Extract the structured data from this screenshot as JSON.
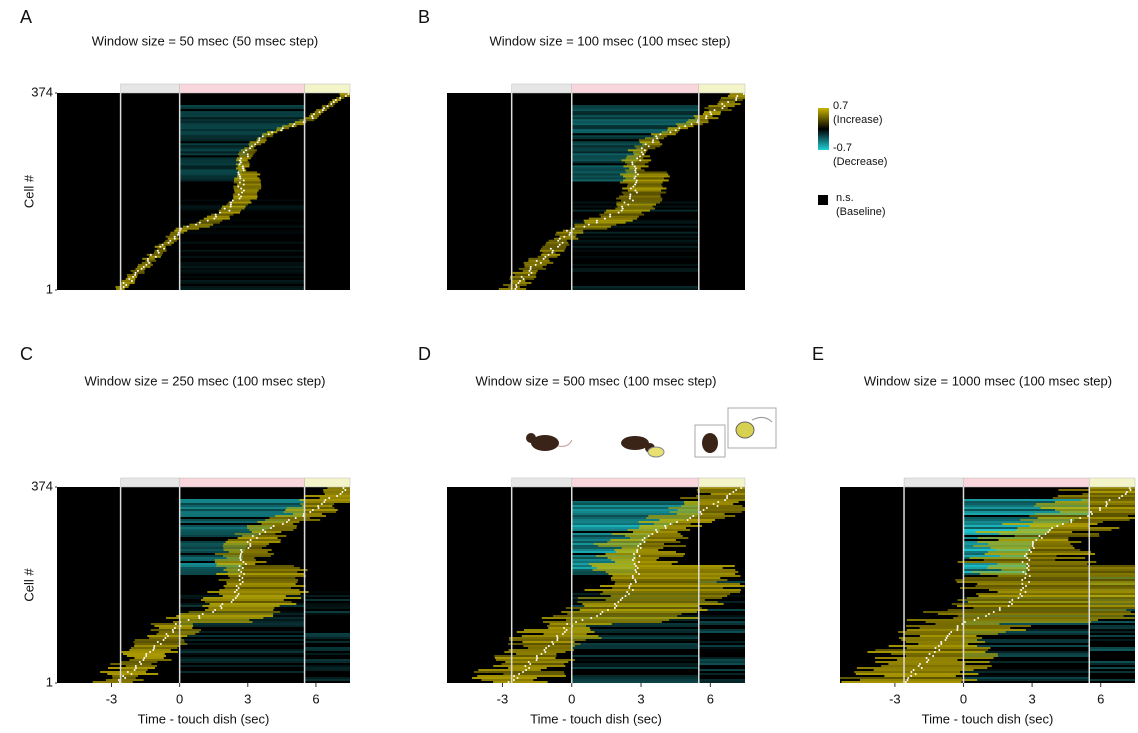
{
  "chart_data": [
    {
      "type": "raster",
      "panel": "A",
      "title": "Window size = 50 msec (50 msec step)",
      "ylabel": "Cell #",
      "ylim": [
        1,
        374
      ],
      "yticks": [
        374,
        1
      ],
      "xlim": [
        -5.4,
        7.5
      ],
      "epochs": [
        {
          "start": -2.6,
          "end": 0,
          "color": "#e6e6e6"
        },
        {
          "start": 0,
          "end": 5.5,
          "color": "#f9d5dc"
        },
        {
          "start": 5.5,
          "end": 7.5,
          "color": "#f3f5c8"
        }
      ]
    },
    {
      "type": "raster",
      "panel": "B",
      "title": "Window size = 100 msec (100 msec step)",
      "ylim": [
        1,
        374
      ],
      "xlim": [
        -5.4,
        7.5
      ],
      "epochs": [
        {
          "start": -2.6,
          "end": 0,
          "color": "#e6e6e6"
        },
        {
          "start": 0,
          "end": 5.5,
          "color": "#f9d5dc"
        },
        {
          "start": 5.5,
          "end": 7.5,
          "color": "#f3f5c8"
        }
      ]
    },
    {
      "type": "raster",
      "panel": "C",
      "title": "Window size = 250 msec (100 msec step)",
      "ylabel": "Cell #",
      "xlabel": "Time - touch dish (sec)",
      "ylim": [
        1,
        374
      ],
      "yticks": [
        374,
        1
      ],
      "xlim": [
        -5.4,
        7.5
      ],
      "xticks": [
        -3,
        0,
        3,
        6
      ],
      "epochs": [
        {
          "start": -2.6,
          "end": 0,
          "color": "#e6e6e6"
        },
        {
          "start": 0,
          "end": 5.5,
          "color": "#f9d5dc"
        },
        {
          "start": 5.5,
          "end": 7.5,
          "color": "#f3f5c8"
        }
      ]
    },
    {
      "type": "raster",
      "panel": "D",
      "title": "Window size = 500 msec (100 msec step)",
      "xlabel": "Time - touch dish (sec)",
      "ylim": [
        1,
        374
      ],
      "xlim": [
        -5.4,
        7.5
      ],
      "xticks": [
        -3,
        0,
        3,
        6
      ],
      "epochs": [
        {
          "start": -2.6,
          "end": 0,
          "color": "#e6e6e6"
        },
        {
          "start": 0,
          "end": 5.5,
          "color": "#f9d5dc"
        },
        {
          "start": 5.5,
          "end": 7.5,
          "color": "#f3f5c8"
        }
      ]
    },
    {
      "type": "raster",
      "panel": "E",
      "title": "Window size = 1000 msec (100 msec step)",
      "xlabel": "Time - touch dish (sec)",
      "ylim": [
        1,
        374
      ],
      "xlim": [
        -5.4,
        7.5
      ],
      "xticks": [
        -3,
        0,
        3,
        6
      ],
      "epochs": [
        {
          "start": -2.6,
          "end": 0,
          "color": "#e6e6e6"
        },
        {
          "start": 0,
          "end": 5.5,
          "color": "#f9d5dc"
        },
        {
          "start": 5.5,
          "end": 7.5,
          "color": "#f3f5c8"
        }
      ]
    }
  ],
  "colorbar": {
    "ticks": [
      0.7,
      -0.7
    ],
    "tick_notes": [
      "(Increase)",
      "(Decrease)"
    ],
    "colors": [
      "#c8b400",
      "#000000",
      "#1fd0d8"
    ],
    "ns_label": "n.s.",
    "ns_note": "(Baseline)",
    "ns_color": "#000000"
  }
}
